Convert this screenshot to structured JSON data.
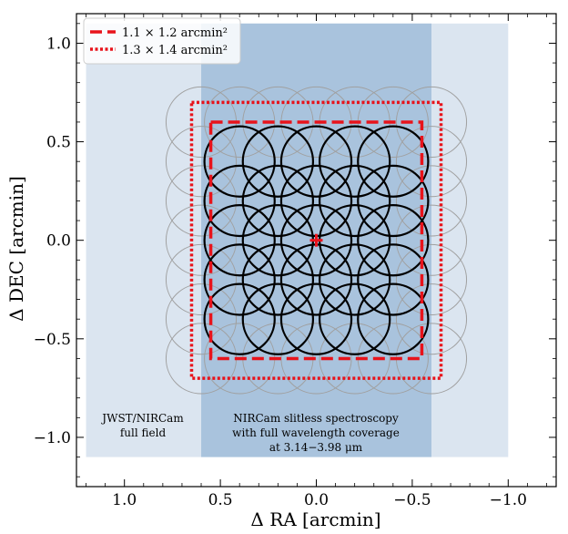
{
  "chart_data": {
    "type": "scatter",
    "xlabel": "Δ RA [arcmin]",
    "ylabel": "Δ DEC [arcmin]",
    "xlim": [
      1.25,
      -1.25
    ],
    "ylim": [
      -1.25,
      1.15
    ],
    "x_inverted": true,
    "x_ticks": [
      1.0,
      0.5,
      0.0,
      -0.5,
      -1.0
    ],
    "x_tick_labels": [
      "1.0",
      "0.5",
      "0.0",
      "−0.5",
      "−1.0"
    ],
    "y_ticks": [
      -1.0,
      -0.5,
      0.0,
      0.5,
      1.0
    ],
    "y_tick_labels": [
      "−1.0",
      "−0.5",
      "0.0",
      "0.5",
      "1.0"
    ],
    "grid": false,
    "legend_position": "top-left",
    "colors": {
      "full_field": "#dbe5f0",
      "spectroscopy": "#a9c3dd",
      "tiling_circles": "#000000",
      "outer_circles": "#a0a0a0",
      "survey_regions": "#e8131b",
      "center_marker": "#e8131b"
    },
    "regions": [
      {
        "label_lines": [
          "JWST/NIRCam",
          "full field"
        ],
        "x_range": [
          1.2,
          -1.0
        ],
        "y_range": [
          -1.1,
          1.1
        ],
        "color": "#dbe5f0"
      },
      {
        "label_lines": [
          "NIRCam slitless spectroscopy",
          "with full wavelength coverage",
          "at 3.14−3.98 μm"
        ],
        "x_range": [
          0.6,
          -0.6
        ],
        "y_range": [
          -1.1,
          1.1
        ],
        "color": "#a9c3dd"
      }
    ],
    "series": [
      {
        "name": "1.1 × 1.2 arcmin²",
        "style": "dashed",
        "color": "#e8131b",
        "x_range": [
          0.55,
          -0.55
        ],
        "y_range": [
          -0.6,
          0.6
        ]
      },
      {
        "name": "1.3 × 1.4 arcmin²",
        "style": "dotted",
        "color": "#e8131b",
        "x_range": [
          0.65,
          -0.65
        ],
        "y_range": [
          -0.7,
          0.7
        ]
      }
    ],
    "tiling": {
      "circle_radius": 0.183,
      "black_x": [
        -0.4,
        -0.2,
        0.0,
        0.2,
        0.4
      ],
      "black_y": [
        -0.4,
        -0.2,
        0.0,
        0.2,
        0.4
      ],
      "gray_x": [
        -0.6,
        -0.4,
        -0.2,
        0.0,
        0.2,
        0.4,
        0.6
      ],
      "gray_y": [
        -0.6,
        -0.4,
        -0.2,
        0.0,
        0.2,
        0.4,
        0.6
      ],
      "center_marker": [
        0.0,
        0.0
      ]
    }
  }
}
